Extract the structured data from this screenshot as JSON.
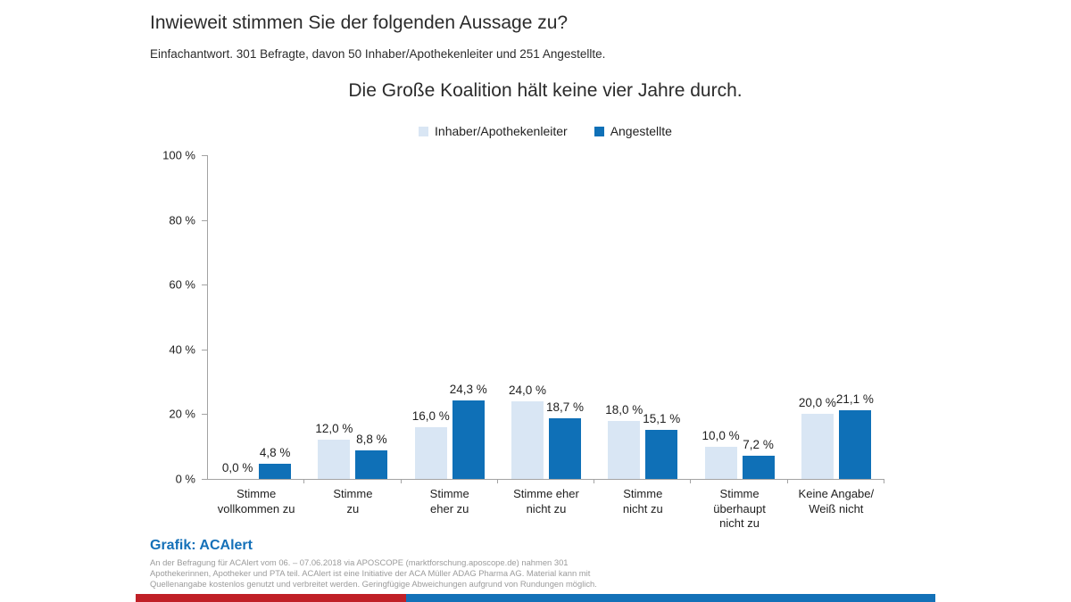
{
  "header": {
    "question": "Inwieweit stimmen Sie der folgenden Aussage zu?",
    "subtitle": "Einfachantwort. 301 Befragte, davon 50 Inhaber/Apothekenleiter und 251 Angestellte."
  },
  "chart_data": {
    "type": "bar",
    "title": "Die Große Koalition hält keine vier Jahre durch.",
    "categories": [
      "Stimme\nvollkommen zu",
      "Stimme\nzu",
      "Stimme\neher zu",
      "Stimme eher\nnicht zu",
      "Stimme\nnicht zu",
      "Stimme\nüberhaupt\nnicht zu",
      "Keine Angabe/\nWeiß nicht"
    ],
    "series": [
      {
        "name": "Inhaber/Apothekenleiter",
        "color": "#d9e6f4",
        "values": [
          0.0,
          12.0,
          16.0,
          24.0,
          18.0,
          10.0,
          20.0
        ],
        "labels": [
          "0,0 %",
          "12,0 %",
          "16,0 %",
          "24,0 %",
          "18,0 %",
          "10,0 %",
          "20,0 %"
        ]
      },
      {
        "name": "Angestellte",
        "color": "#0f70b7",
        "values": [
          4.8,
          8.8,
          24.3,
          18.7,
          15.1,
          7.2,
          21.1
        ],
        "labels": [
          "4,8 %",
          "8,8 %",
          "24,3 %",
          "18,7 %",
          "15,1 %",
          "7,2 %",
          "21,1 %"
        ]
      }
    ],
    "ylim": [
      0,
      100
    ],
    "yticks": [
      {
        "value": 0,
        "label": "0 %"
      },
      {
        "value": 20,
        "label": "20 %"
      },
      {
        "value": 40,
        "label": "40 %"
      },
      {
        "value": 60,
        "label": "60 %"
      },
      {
        "value": 80,
        "label": "80 %"
      },
      {
        "value": 100,
        "label": "100 %"
      }
    ],
    "grid": false,
    "legend_position": "top"
  },
  "footer": {
    "credit": "Grafik: ACAlert",
    "lines": [
      "An der Befragung für ACAlert vom 06. – 07.06.2018 via APOSCOPE (marktforschung.aposcope.de) nahmen 301",
      "Apothekerinnen, Apotheker und PTA teil. ACAlert ist eine Initiative der ACA Müller ADAG Pharma AG. Material kann mit",
      "Quellenangabe kostenlos genutzt und verbreitet werden. Geringfügige Abweichungen aufgrund von Rundungen möglich."
    ]
  },
  "brand_colors": {
    "stripe_red": "#c02027",
    "stripe_blue": "#1371b8",
    "credit_blue": "#1470b8"
  }
}
